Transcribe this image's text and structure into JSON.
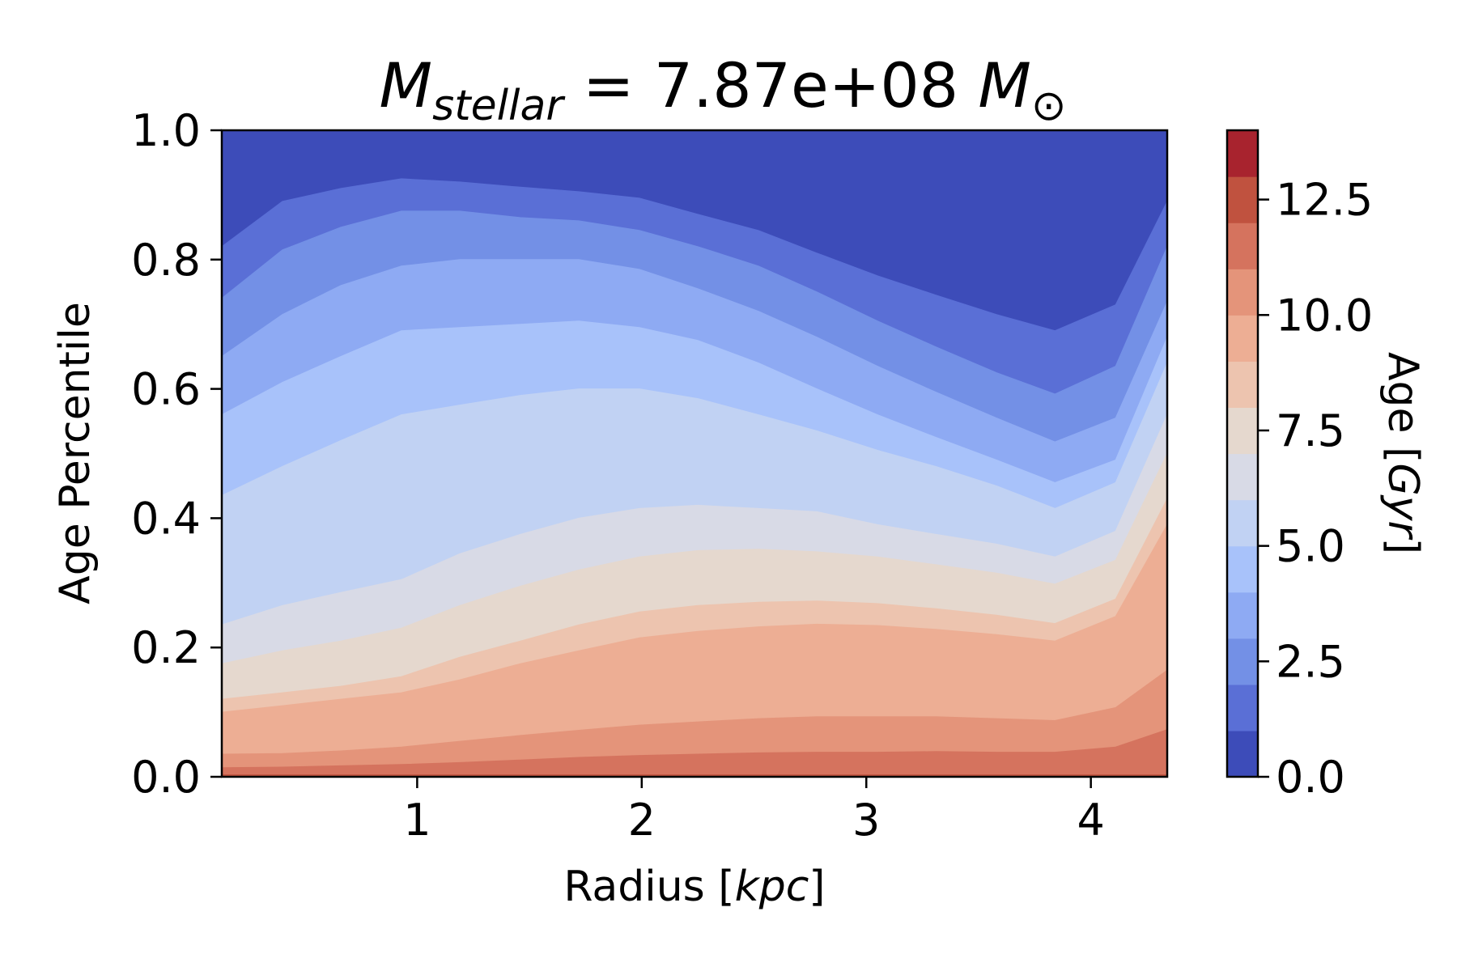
{
  "chart_data": {
    "type": "contourf",
    "title": {
      "symbol": "M",
      "subscript": "stellar",
      "equals": "=",
      "value": "7.87e+08",
      "unit_symbol": "M",
      "unit_subscript": "⊙"
    },
    "xlabel": {
      "text": "Radius [",
      "italic": "kpc",
      "close": "]"
    },
    "ylabel": "Age Percentile",
    "colorbar_label": {
      "text": "Age [",
      "italic": "Gyr",
      "close": "]"
    },
    "xlim": [
      0.13,
      4.34
    ],
    "ylim": [
      0.0,
      1.0
    ],
    "xticks": [
      {
        "value": 1,
        "label": "1"
      },
      {
        "value": 2,
        "label": "2"
      },
      {
        "value": 3,
        "label": "3"
      },
      {
        "value": 4,
        "label": "4"
      }
    ],
    "yticks": [
      {
        "value": 0.0,
        "label": "0.0"
      },
      {
        "value": 0.2,
        "label": "0.2"
      },
      {
        "value": 0.4,
        "label": "0.4"
      },
      {
        "value": 0.6,
        "label": "0.6"
      },
      {
        "value": 0.8,
        "label": "0.8"
      },
      {
        "value": 1.0,
        "label": "1.0"
      }
    ],
    "colorbar_range": [
      0.0,
      14.0
    ],
    "colorbar_ticks": [
      {
        "value": 0.0,
        "label": "0.0"
      },
      {
        "value": 2.5,
        "label": "2.5"
      },
      {
        "value": 5.0,
        "label": "5.0"
      },
      {
        "value": 7.5,
        "label": "7.5"
      },
      {
        "value": 10.0,
        "label": "10.0"
      },
      {
        "value": 12.5,
        "label": "12.5"
      }
    ],
    "levels": [
      0,
      1,
      2,
      3,
      4,
      5,
      6,
      7,
      8,
      9,
      10,
      11,
      12,
      13,
      14
    ],
    "level_colors": [
      "#3d4cb9",
      "#5a6fd6",
      "#7390e6",
      "#8eaaf3",
      "#a8c2fa",
      "#c1d2f3",
      "#d8dae6",
      "#e5d8ce",
      "#edc4af",
      "#edae94",
      "#e4947a",
      "#d5735e",
      "#c0523f",
      "#a8232e"
    ],
    "radius": [
      0.13,
      0.4,
      0.66,
      0.93,
      1.19,
      1.46,
      1.72,
      1.99,
      2.25,
      2.52,
      2.78,
      3.05,
      3.31,
      3.58,
      3.84,
      4.11,
      4.34
    ],
    "age_contours": [
      {
        "age": 1,
        "percentile": [
          0.82,
          0.89,
          0.91,
          0.925,
          0.92,
          0.912,
          0.905,
          0.895,
          0.87,
          0.845,
          0.81,
          0.775,
          0.745,
          0.715,
          0.69,
          0.73,
          0.89
        ]
      },
      {
        "age": 2,
        "percentile": [
          0.74,
          0.815,
          0.85,
          0.875,
          0.875,
          0.865,
          0.86,
          0.845,
          0.82,
          0.79,
          0.75,
          0.705,
          0.665,
          0.625,
          0.592,
          0.635,
          0.82
        ]
      },
      {
        "age": 3,
        "percentile": [
          0.65,
          0.715,
          0.76,
          0.79,
          0.8,
          0.8,
          0.8,
          0.785,
          0.755,
          0.72,
          0.68,
          0.635,
          0.595,
          0.555,
          0.518,
          0.555,
          0.735
        ]
      },
      {
        "age": 4,
        "percentile": [
          0.56,
          0.61,
          0.65,
          0.69,
          0.695,
          0.7,
          0.705,
          0.695,
          0.675,
          0.64,
          0.6,
          0.56,
          0.525,
          0.49,
          0.455,
          0.49,
          0.68
        ]
      },
      {
        "age": 5,
        "percentile": [
          0.435,
          0.48,
          0.52,
          0.56,
          0.575,
          0.59,
          0.6,
          0.6,
          0.585,
          0.56,
          0.535,
          0.505,
          0.48,
          0.45,
          0.415,
          0.455,
          0.64
        ]
      },
      {
        "age": 6,
        "percentile": [
          0.235,
          0.265,
          0.285,
          0.305,
          0.345,
          0.375,
          0.4,
          0.415,
          0.42,
          0.415,
          0.41,
          0.39,
          0.375,
          0.36,
          0.34,
          0.38,
          0.56
        ]
      },
      {
        "age": 7,
        "percentile": [
          0.175,
          0.195,
          0.21,
          0.23,
          0.265,
          0.295,
          0.32,
          0.34,
          0.35,
          0.352,
          0.348,
          0.34,
          0.328,
          0.315,
          0.298,
          0.335,
          0.5
        ]
      },
      {
        "age": 8,
        "percentile": [
          0.12,
          0.13,
          0.14,
          0.155,
          0.185,
          0.21,
          0.235,
          0.255,
          0.265,
          0.27,
          0.272,
          0.268,
          0.26,
          0.25,
          0.237,
          0.275,
          0.43
        ]
      },
      {
        "age": 9,
        "percentile": [
          0.1,
          0.11,
          0.12,
          0.13,
          0.15,
          0.175,
          0.195,
          0.215,
          0.225,
          0.232,
          0.236,
          0.234,
          0.228,
          0.22,
          0.21,
          0.248,
          0.39
        ]
      },
      {
        "age": 10,
        "percentile": [
          0.035,
          0.036,
          0.04,
          0.046,
          0.055,
          0.064,
          0.072,
          0.08,
          0.085,
          0.09,
          0.093,
          0.093,
          0.093,
          0.09,
          0.087,
          0.107,
          0.165
        ]
      },
      {
        "age": 11,
        "percentile": [
          0.014,
          0.015,
          0.017,
          0.019,
          0.022,
          0.026,
          0.03,
          0.033,
          0.035,
          0.037,
          0.038,
          0.038,
          0.039,
          0.038,
          0.038,
          0.046,
          0.073
        ]
      },
      {
        "age": 12,
        "percentile": [
          0.003,
          0.003,
          0.003,
          0.003,
          0.003,
          0.003,
          0.003,
          0.003,
          0.003,
          0.003,
          0.003,
          0.003,
          0.003,
          0.003,
          0.003,
          0.003,
          0.003
        ]
      }
    ],
    "grid": false
  }
}
